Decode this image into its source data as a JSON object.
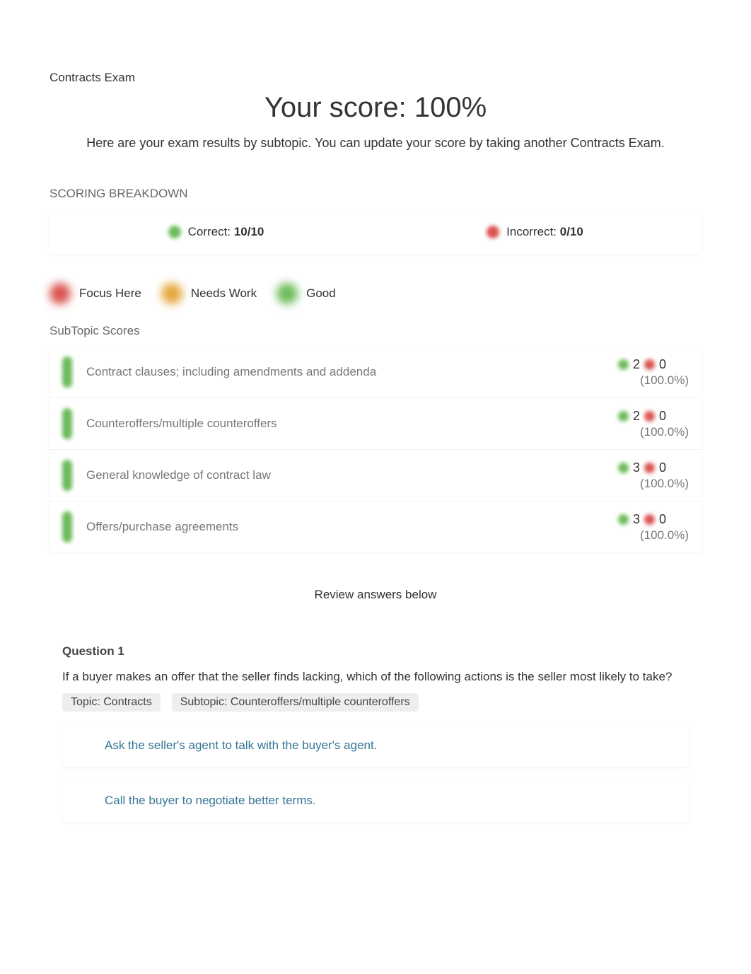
{
  "exam_title": "Contracts Exam",
  "score_headline": "Your score: 100%",
  "subtitle": "Here are your exam results by subtopic. You can update your score by taking another Contracts Exam.",
  "breakdown": {
    "heading": "SCORING BREAKDOWN",
    "correct_label": "Correct: ",
    "correct_value": "10/10",
    "incorrect_label": "Incorrect: ",
    "incorrect_value": "0/10",
    "colors": {
      "correct": "#6cbb5a",
      "incorrect": "#d9534f"
    }
  },
  "legend": {
    "items": [
      {
        "label": "Focus Here",
        "color": "#d9534f"
      },
      {
        "label": "Needs Work",
        "color": "#e4a83c"
      },
      {
        "label": "Good",
        "color": "#6cbb5a"
      }
    ]
  },
  "subtopics": {
    "heading": "SubTopic Scores",
    "rows": [
      {
        "name": "Contract clauses; including amendments and addenda",
        "correct": "2",
        "incorrect": "0",
        "pct": "(100.0%)",
        "pill_color": "#6cbb5a"
      },
      {
        "name": "Counteroffers/multiple counteroffers",
        "correct": "2",
        "incorrect": "0",
        "pct": "(100.0%)",
        "pill_color": "#6cbb5a"
      },
      {
        "name": "General knowledge of contract law",
        "correct": "3",
        "incorrect": "0",
        "pct": "(100.0%)",
        "pill_color": "#6cbb5a"
      },
      {
        "name": "Offers/purchase agreements",
        "correct": "3",
        "incorrect": "0",
        "pct": "(100.0%)",
        "pill_color": "#6cbb5a"
      }
    ]
  },
  "review_label": "Review answers below",
  "question": {
    "title": "Question 1",
    "text": "If a buyer makes an offer that the seller finds lacking, which of the following actions is the seller most likely to take?",
    "topic_tag": "Topic: Contracts",
    "subtopic_tag": "Subtopic: Counteroffers/multiple counteroffers",
    "answers": [
      "Ask the seller's agent to talk with the buyer's agent.",
      "Call the buyer to negotiate better terms."
    ]
  },
  "colors": {
    "text_primary": "#333333",
    "text_muted": "#777777",
    "answer_link": "#377596",
    "tag_bg": "#eeeeee",
    "background": "#ffffff"
  }
}
